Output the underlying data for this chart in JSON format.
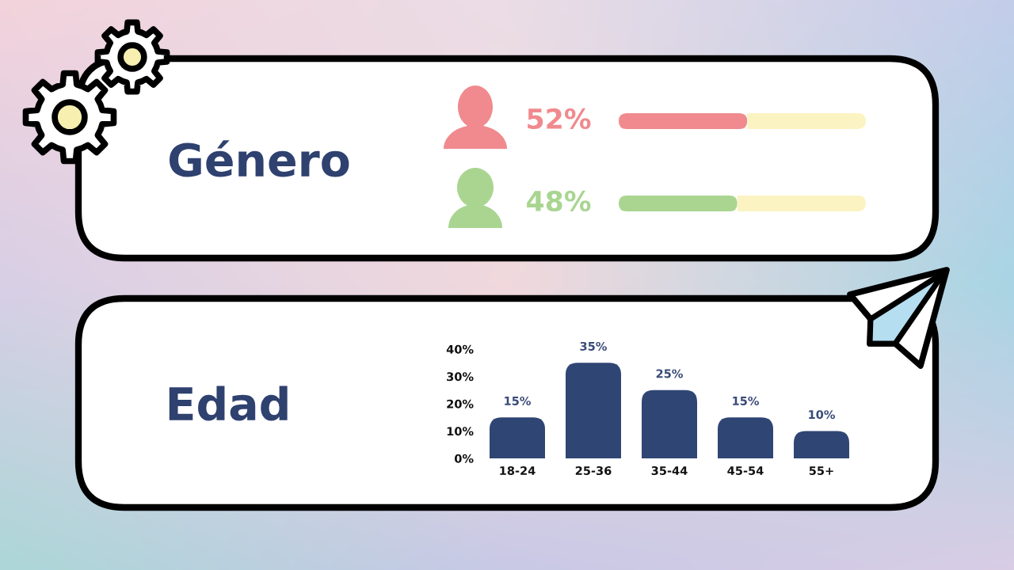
{
  "chart_data": [
    {
      "type": "bar",
      "title": "Género",
      "orientation": "horizontal",
      "stacked": true,
      "categories": [
        null,
        null
      ],
      "series": [
        {
          "colors": [
            "#f08a8e",
            "#a9d591"
          ],
          "values": [
            52,
            48
          ],
          "value_labels": [
            "52%",
            "48%"
          ]
        },
        {
          "color": "#fcf3c2",
          "values": [
            48,
            52
          ]
        }
      ],
      "xlim": [
        0,
        100
      ]
    },
    {
      "type": "bar",
      "title": "Edad",
      "categories": [
        "18-24",
        "25-36",
        "35-44",
        "45-54",
        "55+"
      ],
      "values": [
        15,
        35,
        25,
        15,
        10
      ],
      "color": "#2f4574",
      "value_labels": [
        "15%",
        "35%",
        "25%",
        "15%",
        "10%"
      ],
      "ylim": [
        0,
        40
      ],
      "yticks": [
        {
          "value": 0,
          "label": "0%"
        },
        {
          "value": 10,
          "label": "10%"
        },
        {
          "value": 20,
          "label": "20%"
        },
        {
          "value": 30,
          "label": "30%"
        },
        {
          "value": 40,
          "label": "40%"
        }
      ]
    }
  ]
}
